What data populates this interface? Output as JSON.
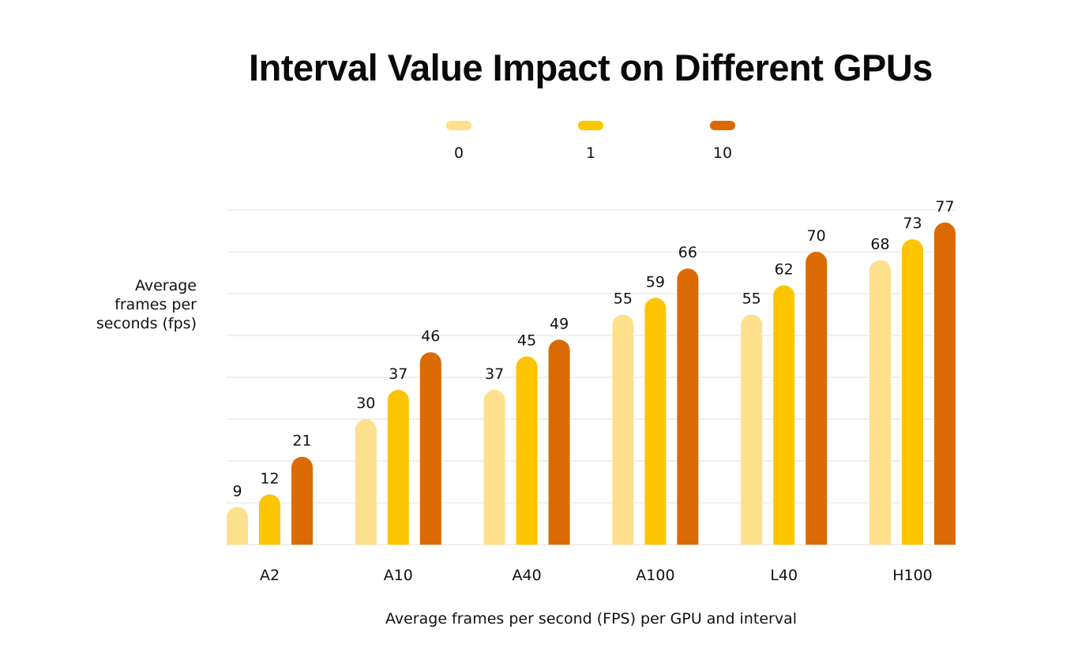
{
  "chart_data": {
    "type": "bar",
    "title": "Interval Value Impact on Different GPUs",
    "xlabel": "Average frames per second (FPS) per GPU and interval",
    "ylabel": "Average frames per seconds (fps)",
    "categories": [
      "A2",
      "A10",
      "A40",
      "A100",
      "L40",
      "H100"
    ],
    "series": [
      {
        "name": "0",
        "color": "#FDE08B",
        "values": [
          9,
          30,
          37,
          55,
          55,
          68
        ]
      },
      {
        "name": "1",
        "color": "#FDC500",
        "values": [
          12,
          37,
          45,
          59,
          62,
          73
        ]
      },
      {
        "name": "10",
        "color": "#DC6A03",
        "values": [
          21,
          46,
          49,
          66,
          70,
          77
        ]
      }
    ],
    "ylim": [
      0,
      80
    ],
    "grid": true,
    "grid_step": 10,
    "legend_position": "top-center",
    "show_data_labels": true,
    "show_y_tick_labels": false
  }
}
